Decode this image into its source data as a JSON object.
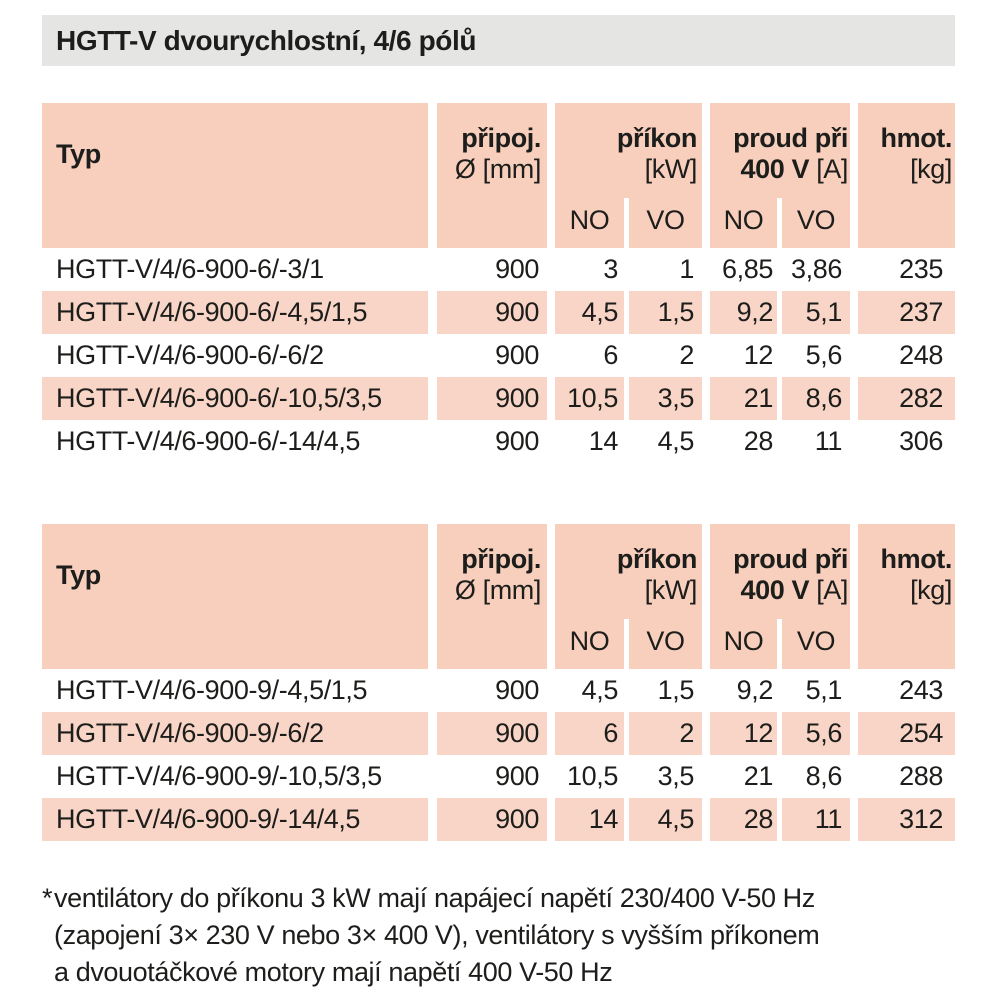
{
  "title": "HGTT-V dvourychlostní, 4/6 pólů",
  "colors": {
    "titlebar_bg": "#E5E5E4",
    "header_bg": "#F7CFBC",
    "row_bg": "#F8D5C6",
    "text": "#1D1D1B",
    "page_bg": "#FFFFFF"
  },
  "table_header": {
    "typ": "Typ",
    "pripoj_l1": "připoj.",
    "pripoj_l2": "Ø [mm]",
    "prikon_l1": "příkon",
    "prikon_l2": "[kW]",
    "proud_l1": "proud při",
    "proud_l2_bold": "400 V",
    "proud_l2_unit": "[A]",
    "hmot_l1": "hmot.",
    "hmot_l2": "[kg]",
    "sub_no": "NO",
    "sub_vo": "VO"
  },
  "tables": [
    {
      "rows": [
        {
          "type": "HGTT-V/4/6-900-6/-3/1",
          "d": "900",
          "kw_no": "3",
          "kw_vo": "1",
          "a_no": "6,85",
          "a_vo": "3,86",
          "kg": "235",
          "shaded": false
        },
        {
          "type": "HGTT-V/4/6-900-6/-4,5/1,5",
          "d": "900",
          "kw_no": "4,5",
          "kw_vo": "1,5",
          "a_no": "9,2",
          "a_vo": "5,1",
          "kg": "237",
          "shaded": true
        },
        {
          "type": "HGTT-V/4/6-900-6/-6/2",
          "d": "900",
          "kw_no": "6",
          "kw_vo": "2",
          "a_no": "12",
          "a_vo": "5,6",
          "kg": "248",
          "shaded": false
        },
        {
          "type": "HGTT-V/4/6-900-6/-10,5/3,5",
          "d": "900",
          "kw_no": "10,5",
          "kw_vo": "3,5",
          "a_no": "21",
          "a_vo": "8,6",
          "kg": "282",
          "shaded": true
        },
        {
          "type": "HGTT-V/4/6-900-6/-14/4,5",
          "d": "900",
          "kw_no": "14",
          "kw_vo": "4,5",
          "a_no": "28",
          "a_vo": "11",
          "kg": "306",
          "shaded": false
        }
      ]
    },
    {
      "rows": [
        {
          "type": "HGTT-V/4/6-900-9/-4,5/1,5",
          "d": "900",
          "kw_no": "4,5",
          "kw_vo": "1,5",
          "a_no": "9,2",
          "a_vo": "5,1",
          "kg": "243",
          "shaded": false
        },
        {
          "type": "HGTT-V/4/6-900-9/-6/2",
          "d": "900",
          "kw_no": "6",
          "kw_vo": "2",
          "a_no": "12",
          "a_vo": "5,6",
          "kg": "254",
          "shaded": true
        },
        {
          "type": "HGTT-V/4/6-900-9/-10,5/3,5",
          "d": "900",
          "kw_no": "10,5",
          "kw_vo": "3,5",
          "a_no": "21",
          "a_vo": "8,6",
          "kg": "288",
          "shaded": false
        },
        {
          "type": "HGTT-V/4/6-900-9/-14/4,5",
          "d": "900",
          "kw_no": "14",
          "kw_vo": "4,5",
          "a_no": "28",
          "a_vo": "11",
          "kg": "312",
          "shaded": true
        }
      ]
    }
  ],
  "footnote": {
    "marker": "*",
    "lines": [
      "ventilátory do příkonu 3 kW mají napájecí napětí 230/400 V-50 Hz",
      "(zapojení 3× 230 V nebo 3× 400 V), ventilátory s vyšším příkonem",
      "a dvouotáčkové motory mají napětí 400 V-50 Hz"
    ]
  }
}
